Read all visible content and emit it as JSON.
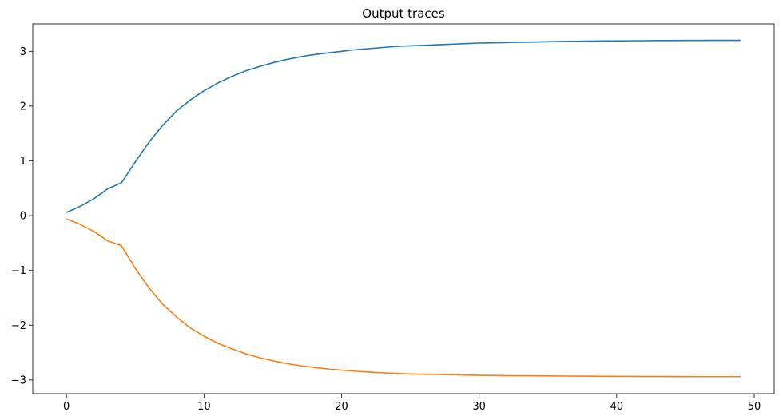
{
  "chart_data": {
    "type": "line",
    "title": "Output traces",
    "xlabel": "",
    "ylabel": "",
    "xlim": [
      -2.45,
      51.45
    ],
    "ylim": [
      -3.25,
      3.5
    ],
    "xticks": [
      0,
      10,
      20,
      30,
      40,
      50
    ],
    "yticks": [
      -3,
      -2,
      -1,
      0,
      1,
      2,
      3
    ],
    "grid": false,
    "legend": "none",
    "x": [
      0,
      1,
      2,
      3,
      4,
      5,
      6,
      7,
      8,
      9,
      10,
      11,
      12,
      13,
      14,
      15,
      16,
      17,
      18,
      19,
      20,
      21,
      22,
      23,
      24,
      25,
      26,
      27,
      28,
      29,
      30,
      31,
      32,
      33,
      34,
      35,
      36,
      37,
      38,
      39,
      40,
      41,
      42,
      43,
      44,
      45,
      46,
      47,
      48,
      49
    ],
    "series": [
      {
        "color": "#1f77b4",
        "values": [
          0.06,
          0.17,
          0.31,
          0.49,
          0.6,
          0.98,
          1.34,
          1.65,
          1.91,
          2.11,
          2.28,
          2.42,
          2.54,
          2.64,
          2.72,
          2.79,
          2.85,
          2.9,
          2.94,
          2.97,
          3.0,
          3.03,
          3.05,
          3.07,
          3.09,
          3.1,
          3.11,
          3.12,
          3.13,
          3.14,
          3.15,
          3.155,
          3.16,
          3.165,
          3.17,
          3.175,
          3.18,
          3.183,
          3.186,
          3.189,
          3.19,
          3.192,
          3.194,
          3.196,
          3.197,
          3.198,
          3.199,
          3.2,
          3.2,
          3.2
        ]
      },
      {
        "color": "#ff7f0e",
        "values": [
          -0.06,
          -0.16,
          -0.29,
          -0.46,
          -0.55,
          -0.96,
          -1.32,
          -1.62,
          -1.85,
          -2.05,
          -2.2,
          -2.33,
          -2.43,
          -2.52,
          -2.59,
          -2.65,
          -2.7,
          -2.74,
          -2.77,
          -2.8,
          -2.82,
          -2.84,
          -2.855,
          -2.87,
          -2.88,
          -2.89,
          -2.895,
          -2.9,
          -2.905,
          -2.91,
          -2.915,
          -2.918,
          -2.921,
          -2.923,
          -2.925,
          -2.927,
          -2.929,
          -2.931,
          -2.932,
          -2.934,
          -2.935,
          -2.936,
          -2.937,
          -2.938,
          -2.939,
          -2.939,
          -2.94,
          -2.94,
          -2.94,
          -2.94
        ]
      }
    ]
  }
}
